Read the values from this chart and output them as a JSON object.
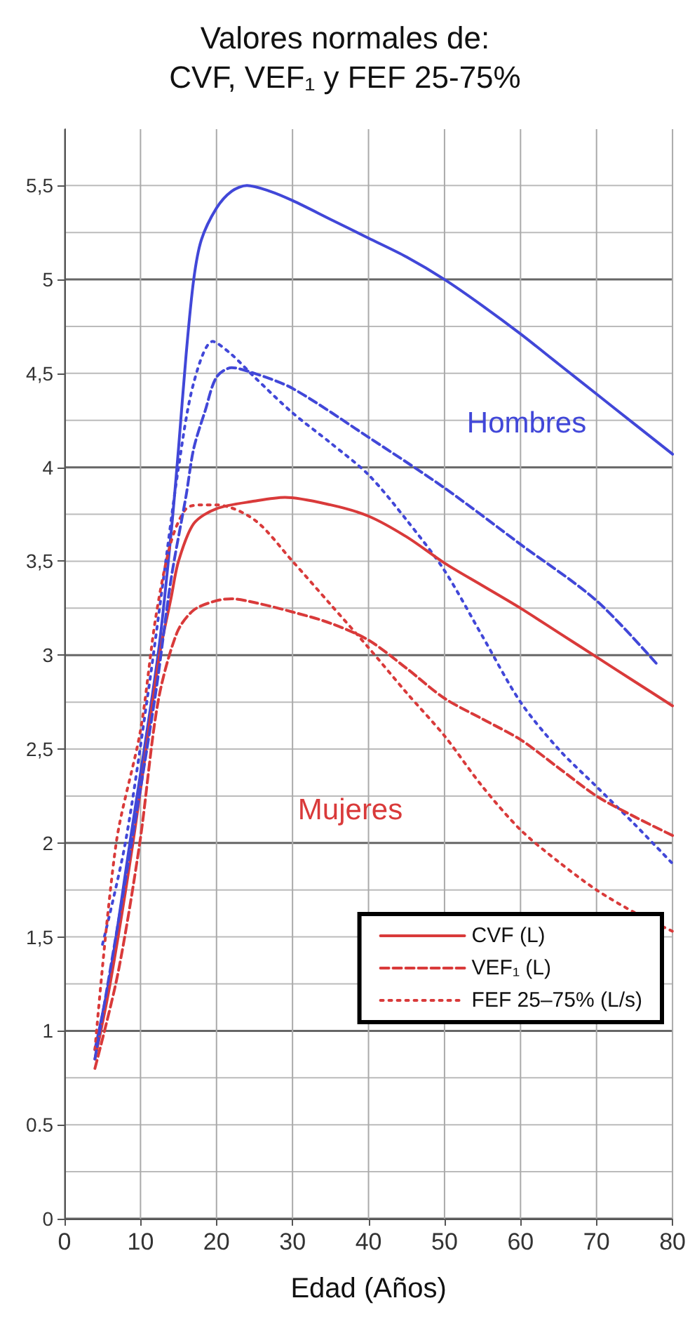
{
  "chart_data": {
    "type": "line",
    "title": "Valores normales de:\nCVF, VEF₁ y FEF 25-75%",
    "xlabel": "Edad (Años)",
    "xlim": [
      0,
      80
    ],
    "xticks": [
      0,
      10,
      20,
      30,
      40,
      50,
      60,
      70,
      80
    ],
    "ylim": [
      0,
      5.8
    ],
    "yticks": [
      0,
      {
        "value": 0.25,
        "label": null
      },
      {
        "value": 0.5,
        "label": "0.5"
      },
      {
        "value": 0.75,
        "label": null
      },
      1,
      {
        "value": 1.25,
        "label": null
      },
      {
        "value": 1.5,
        "label": "1,5"
      },
      {
        "value": 1.75,
        "label": null
      },
      2,
      {
        "value": 2.25,
        "label": null
      },
      {
        "value": 2.5,
        "label": "2,5"
      },
      {
        "value": 2.75,
        "label": null
      },
      3,
      {
        "value": 3.25,
        "label": null
      },
      {
        "value": 3.5,
        "label": "3,5"
      },
      {
        "value": 3.75,
        "label": null
      },
      4,
      {
        "value": 4.25,
        "label": null
      },
      {
        "value": 4.5,
        "label": "4,5"
      },
      {
        "value": 4.75,
        "label": null
      },
      5,
      {
        "value": 5.25,
        "label": null
      },
      {
        "value": 5.5,
        "label": "5,5"
      }
    ],
    "grid": true,
    "legend": "bottom right",
    "marker": "none",
    "annotations": [
      "Hombres",
      "Mujeres"
    ],
    "series": [
      {
        "color": "#4147d8",
        "line_style": "solid",
        "x": [
          4,
          6,
          8.6,
          12.3,
          14,
          15,
          16,
          17,
          18,
          20,
          22,
          24,
          27,
          30,
          35,
          40,
          45,
          50,
          55,
          60,
          65,
          70,
          75,
          80
        ],
        "values": [
          0.9,
          1.3,
          2.0,
          3.0,
          3.64,
          4.1,
          4.6,
          5.0,
          5.21,
          5.38,
          5.47,
          5.5,
          5.47,
          5.42,
          5.32,
          5.22,
          5.12,
          5.0,
          4.86,
          4.71,
          4.55,
          4.39,
          4.23,
          4.07
        ]
      },
      {
        "color": "#4147d8",
        "line_style": "dashed",
        "x": [
          4,
          8,
          12,
          14,
          16,
          17,
          18.5,
          20,
          22,
          25,
          30,
          40,
          50,
          60,
          70,
          78
        ],
        "values": [
          0.85,
          1.8,
          2.8,
          3.4,
          3.85,
          4.1,
          4.3,
          4.48,
          4.53,
          4.5,
          4.42,
          4.16,
          3.89,
          3.59,
          3.29,
          2.95
        ]
      },
      {
        "color": "#4147d8",
        "line_style": "dotted",
        "x": [
          5,
          8,
          11,
          13,
          15,
          17,
          19.5,
          22,
          25,
          30,
          35,
          40,
          45,
          50,
          55,
          60,
          65,
          70,
          75,
          80
        ],
        "values": [
          1.46,
          2.0,
          2.8,
          3.4,
          4.0,
          4.45,
          4.67,
          4.6,
          4.48,
          4.29,
          4.13,
          3.96,
          3.72,
          3.45,
          3.1,
          2.75,
          2.5,
          2.3,
          2.1,
          1.89
        ]
      },
      {
        "name": "CVF (L)",
        "color": "#d93a3a",
        "line_style": "solid",
        "x": [
          4,
          6,
          9,
          12.5,
          14,
          15,
          17,
          20,
          25,
          29,
          35,
          40,
          45,
          50,
          55,
          60,
          65,
          70,
          75,
          80
        ],
        "values": [
          0.85,
          1.25,
          2.0,
          3.0,
          3.3,
          3.5,
          3.7,
          3.78,
          3.82,
          3.84,
          3.8,
          3.74,
          3.63,
          3.49,
          3.37,
          3.25,
          3.12,
          2.99,
          2.86,
          2.73
        ]
      },
      {
        "name": "VEF₁ (L)",
        "color": "#d93a3a",
        "line_style": "dashed",
        "x": [
          4,
          7,
          9.9,
          12.3,
          14.8,
          17,
          20,
          22,
          25,
          30,
          35,
          40,
          45,
          50,
          55,
          60,
          65,
          70,
          75,
          80
        ],
        "values": [
          0.8,
          1.3,
          2.0,
          2.75,
          3.12,
          3.24,
          3.29,
          3.3,
          3.28,
          3.23,
          3.17,
          3.08,
          2.93,
          2.77,
          2.66,
          2.55,
          2.4,
          2.25,
          2.14,
          2.04
        ]
      },
      {
        "name": "FEF 25–75% (L/s)",
        "color": "#d93a3a",
        "line_style": "dotted",
        "x": [
          4,
          6.8,
          10,
          12,
          14,
          16,
          18,
          20,
          25,
          30,
          35,
          40,
          45,
          50,
          55,
          60,
          65,
          70,
          75,
          80
        ],
        "values": [
          0.9,
          2.0,
          2.6,
          3.2,
          3.6,
          3.78,
          3.8,
          3.8,
          3.72,
          3.5,
          3.27,
          3.04,
          2.8,
          2.57,
          2.3,
          2.07,
          1.9,
          1.75,
          1.63,
          1.53
        ]
      }
    ]
  }
}
